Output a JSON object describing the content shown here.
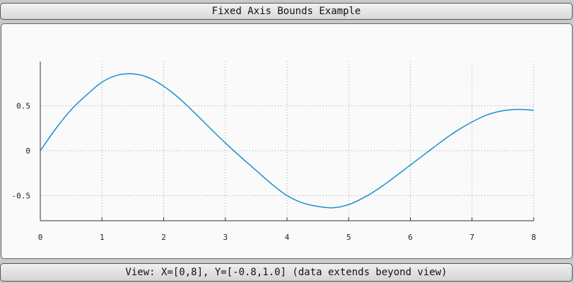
{
  "window": {
    "title": "Fixed Axis Bounds Example"
  },
  "status": {
    "text": "View: X=[0,8], Y=[-0.8,1.0] (data extends beyond view)"
  },
  "colors": {
    "line": "#1a8fd0",
    "grid": "#9a9a9a",
    "axis": "#333333"
  },
  "chart_data": {
    "type": "line",
    "xlim": [
      0,
      8
    ],
    "ylim": [
      -0.8,
      1.0
    ],
    "xticks": [
      "0",
      "1",
      "2",
      "3",
      "4",
      "5",
      "6",
      "7",
      "8"
    ],
    "yticks": [
      {
        "value": 0.5,
        "label": "0.5"
      },
      {
        "value": 0,
        "label": "0"
      },
      {
        "value": -0.5,
        "label": "-0.5"
      }
    ],
    "grid": true,
    "series": [
      {
        "x": [
          0,
          0.25,
          0.5,
          0.75,
          1.0,
          1.25,
          1.5,
          1.75,
          2.0,
          2.25,
          2.5,
          2.75,
          3.0,
          3.25,
          3.5,
          3.75,
          4.0,
          4.25,
          4.5,
          4.75,
          5.0,
          5.25,
          5.5,
          5.75,
          6.0,
          6.25,
          6.5,
          6.75,
          7.0,
          7.25,
          7.5,
          7.75,
          8.0
        ],
        "y": [
          0.0,
          0.244,
          0.456,
          0.62,
          0.763,
          0.84,
          0.855,
          0.815,
          0.718,
          0.584,
          0.423,
          0.253,
          0.086,
          -0.07,
          -0.22,
          -0.37,
          -0.5,
          -0.58,
          -0.62,
          -0.635,
          -0.6,
          -0.52,
          -0.415,
          -0.29,
          -0.16,
          -0.03,
          0.1,
          0.22,
          0.32,
          0.4,
          0.445,
          0.46,
          0.45
        ]
      }
    ]
  }
}
